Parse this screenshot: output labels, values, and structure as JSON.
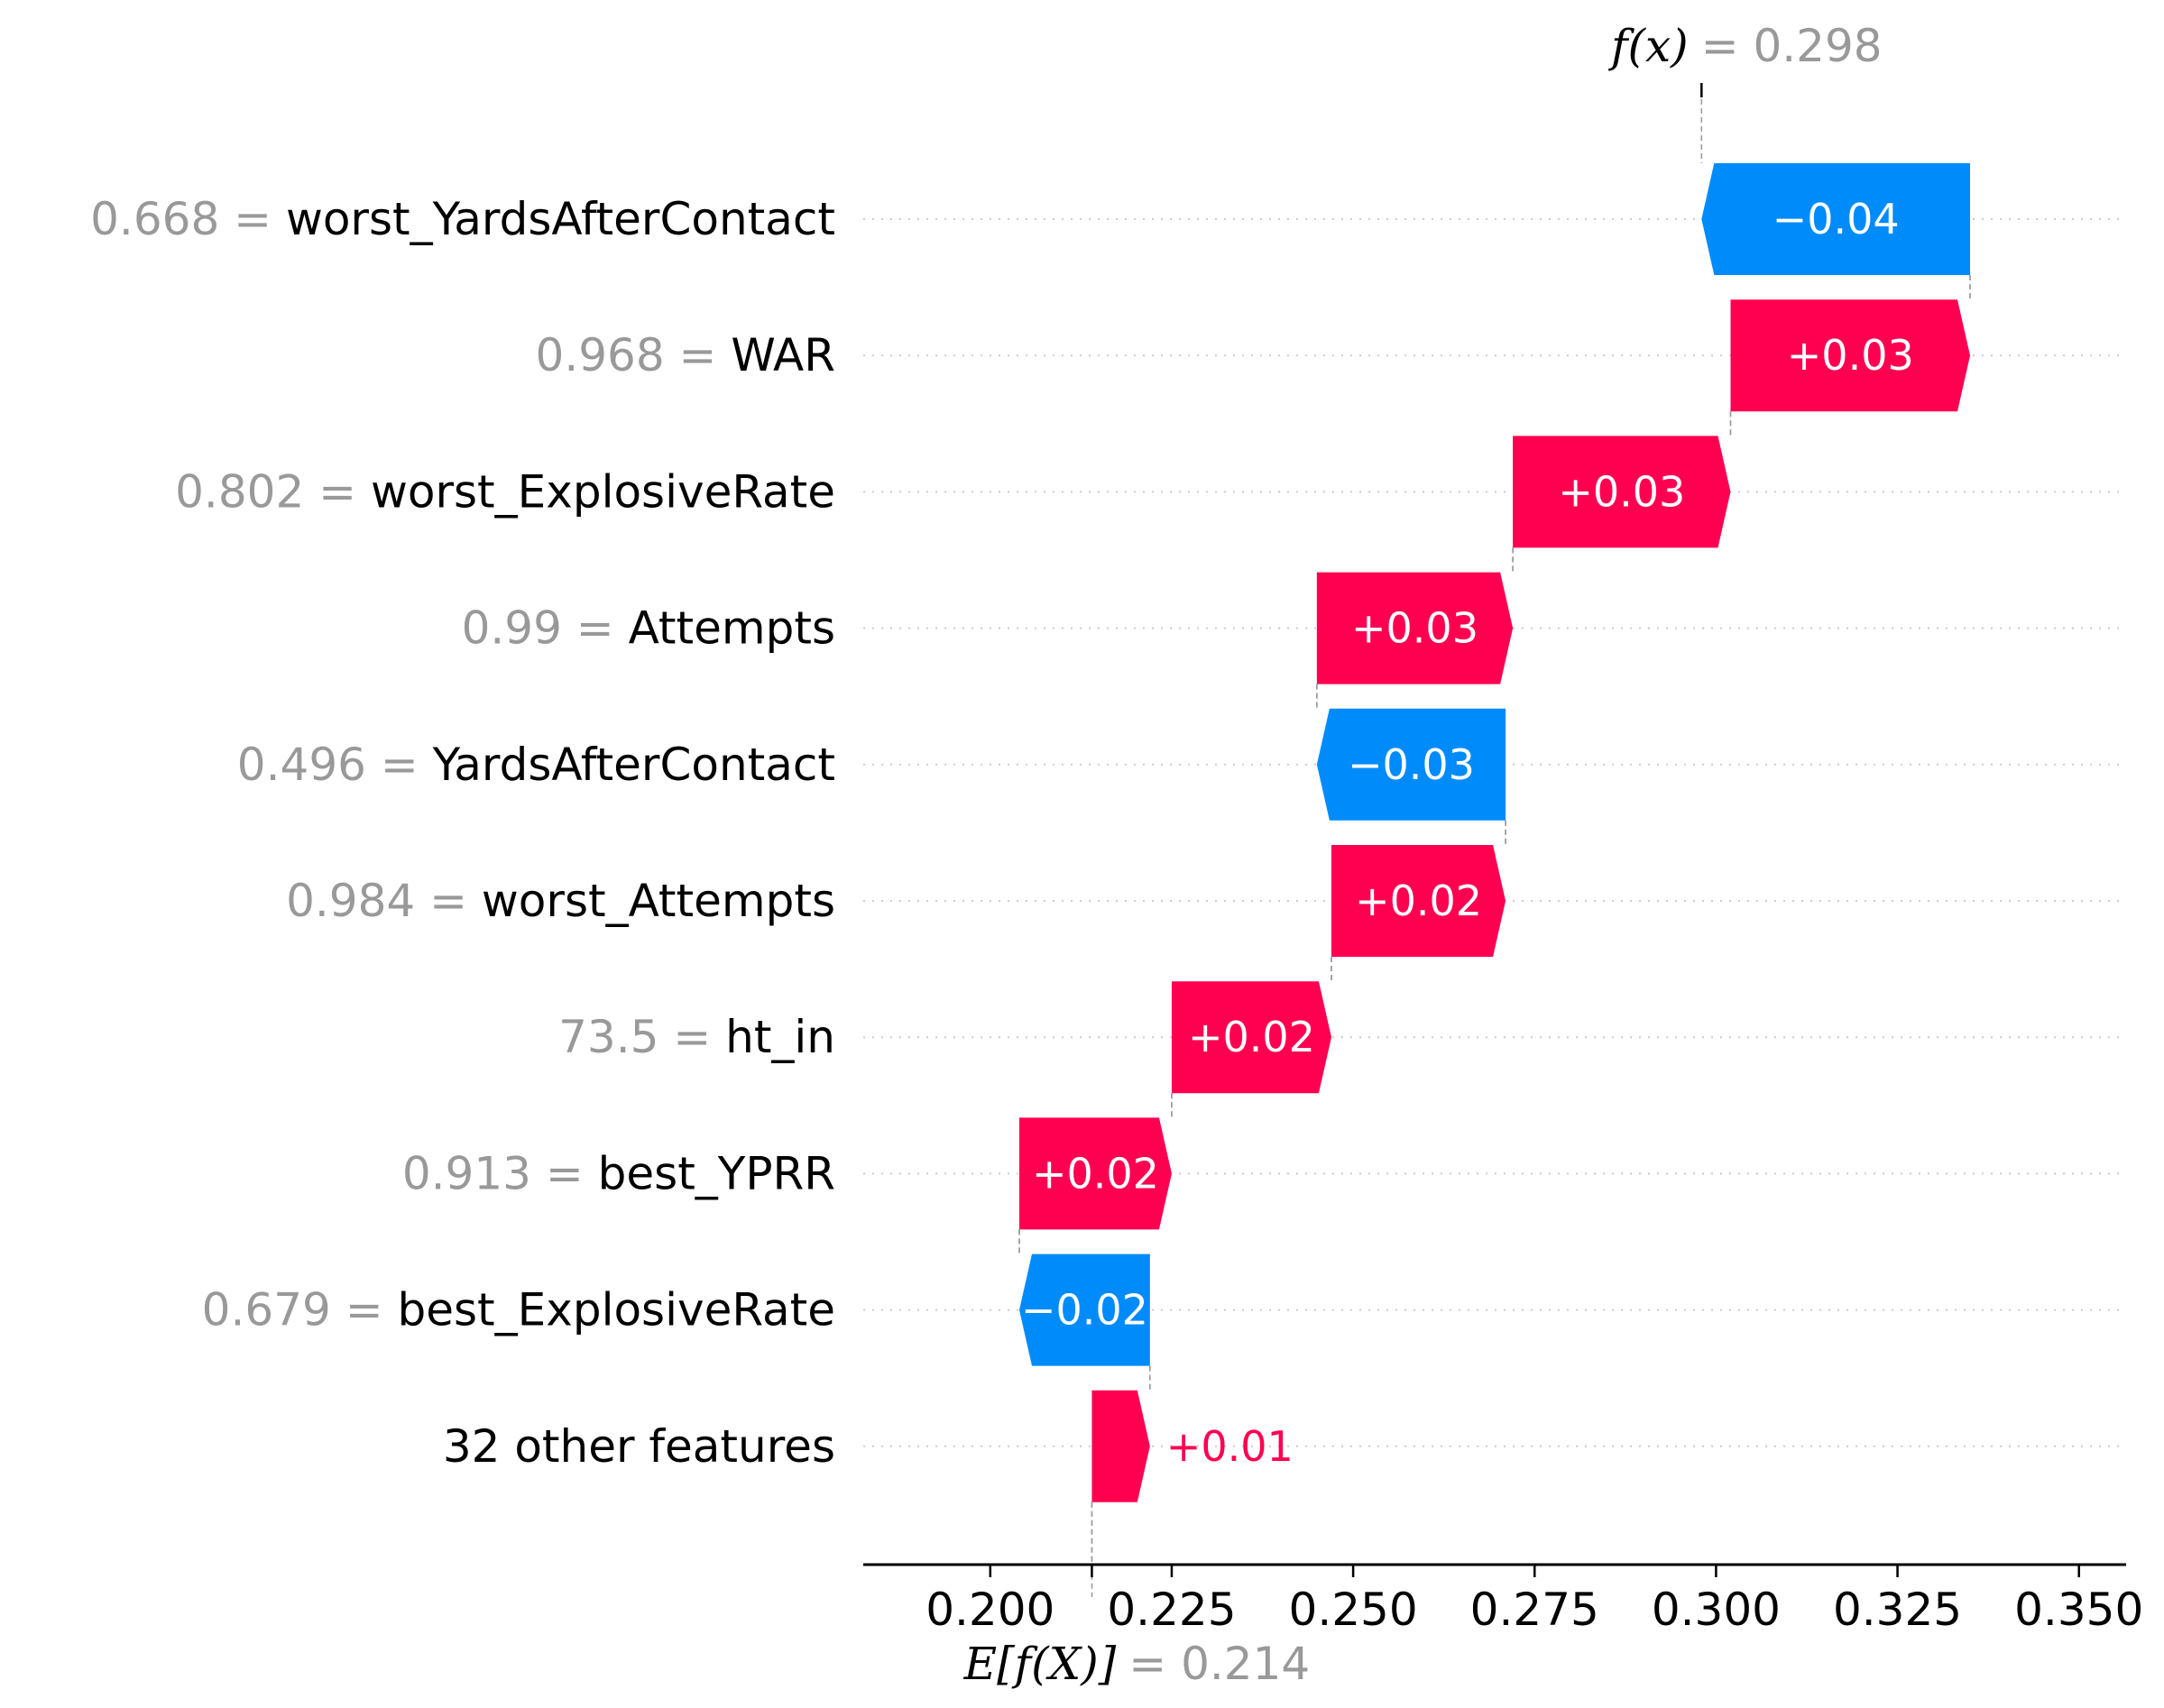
{
  "chart_data": {
    "type": "waterfall",
    "features": [
      {
        "value": "0.668",
        "name": "worst_YardsAfterContact",
        "contribution": -0.037,
        "label": "−0.04"
      },
      {
        "value": "0.968",
        "name": "WAR",
        "contribution": 0.033,
        "label": "+0.03"
      },
      {
        "value": "0.802",
        "name": "worst_ExplosiveRate",
        "contribution": 0.03,
        "label": "+0.03"
      },
      {
        "value": "0.99",
        "name": "Attempts",
        "contribution": 0.027,
        "label": "+0.03"
      },
      {
        "value": "0.496",
        "name": "YardsAfterContact",
        "contribution": -0.026,
        "label": "−0.03"
      },
      {
        "value": "0.984",
        "name": "worst_Attempts",
        "contribution": 0.024,
        "label": "+0.02"
      },
      {
        "value": "73.5",
        "name": "ht_in",
        "contribution": 0.022,
        "label": "+0.02"
      },
      {
        "value": "0.913",
        "name": "best_YPRR",
        "contribution": 0.021,
        "label": "+0.02"
      },
      {
        "value": "0.679",
        "name": "best_ExplosiveRate",
        "contribution": -0.018,
        "label": "−0.02"
      },
      {
        "value": "",
        "name": "32 other features",
        "contribution": 0.008,
        "label": "+0.01"
      }
    ],
    "base_value": 0.214,
    "output_value": 0.298,
    "base_label": {
      "math": "E[f(X)]",
      "eq": "= 0.214"
    },
    "output_label": {
      "math": "f(x)",
      "eq": "= 0.298"
    },
    "x_ticks": [
      "0.200",
      "0.225",
      "0.250",
      "0.275",
      "0.300",
      "0.325",
      "0.350"
    ],
    "x_tick_values": [
      0.2,
      0.225,
      0.25,
      0.275,
      0.3,
      0.325,
      0.35
    ],
    "xlim": [
      0.1825,
      0.3565
    ],
    "colors": {
      "positive": "#ff0051",
      "negative": "#008bfb",
      "gray_text": "#999999",
      "grid": "#cccccc"
    }
  }
}
